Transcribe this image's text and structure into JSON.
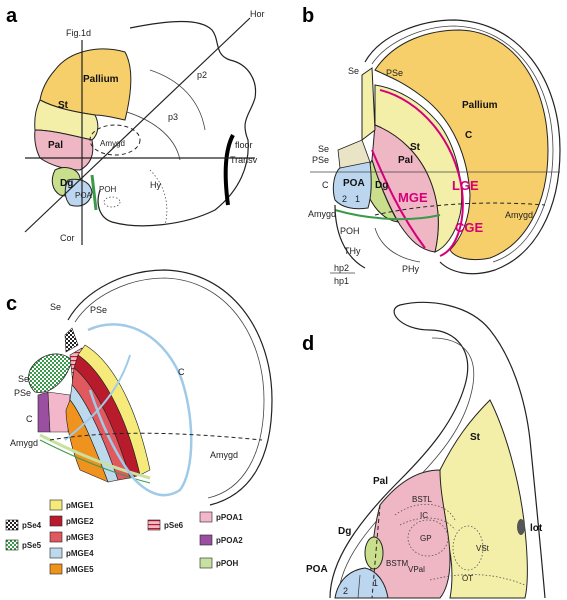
{
  "panels": {
    "a": {
      "letter": "a",
      "labels": {
        "fig1d": "Fig.1d",
        "hor": "Hor",
        "transv": "Transv",
        "cor": "Cor",
        "pallium": "Pallium",
        "st": "St",
        "pal": "Pal",
        "amygd": "Amygd",
        "dg": "Dg",
        "poa": "POA",
        "poh": "POH",
        "hy": "Hy",
        "p2": "p2",
        "p3": "p3",
        "floor": "floor"
      }
    },
    "b": {
      "letter": "b",
      "labels": {
        "se_top": "Se",
        "pse_top": "PSe",
        "se_mid": "Se",
        "pse_mid": "PSe",
        "c_left": "C",
        "pallium": "Pallium",
        "c_arc": "C",
        "st": "St",
        "pal": "Pal",
        "dg": "Dg",
        "poa": "POA",
        "n2": "2",
        "n1": "1",
        "mge": "MGE",
        "lge": "LGE",
        "cge": "CGE",
        "amygd_left": "Amygd",
        "amygd_right": "Amygd",
        "poh": "POH",
        "thy": "THy",
        "phy": "PHy",
        "hp2": "hp2",
        "hp1": "hp1"
      }
    },
    "c": {
      "letter": "c",
      "labels": {
        "se_top": "Se",
        "pse_top": "PSe",
        "se_mid": "Se",
        "pse_mid": "PSe",
        "c_left": "C",
        "c_arc": "C",
        "amygd_left": "Amygd",
        "amygd_right": "Amygd"
      }
    },
    "d": {
      "letter": "d",
      "labels": {
        "st": "St",
        "pal": "Pal",
        "dg": "Dg",
        "poa": "POA",
        "bstl": "BSTL",
        "ic": "IC",
        "gp": "GP",
        "bstm": "BSTM",
        "vpal": "VPal",
        "vst": "VSt",
        "ot": "OT",
        "lot": "lot",
        "n2": "2",
        "n1": "1"
      }
    }
  },
  "legend": {
    "items": [
      {
        "label": "pSe4",
        "color": "#ffffff",
        "pattern": "checker"
      },
      {
        "label": "pSe5",
        "color": "#3a9a4a",
        "pattern": "checker"
      },
      {
        "label": "pMGE1",
        "color": "#f5ea7a",
        "pattern": "none"
      },
      {
        "label": "pMGE2",
        "color": "#b81c2c",
        "pattern": "none"
      },
      {
        "label": "pMGE3",
        "color": "#e0595f",
        "pattern": "none"
      },
      {
        "label": "pMGE4",
        "color": "#bcd9ee",
        "pattern": "none"
      },
      {
        "label": "pMGE5",
        "color": "#f0931e",
        "pattern": "none"
      },
      {
        "label": "pSe6",
        "color": "#f4b7c6",
        "pattern": "stripes"
      },
      {
        "label": "pPOA1",
        "color": "#f3b7cb",
        "pattern": "none"
      },
      {
        "label": "pPOA2",
        "color": "#9a4fa0",
        "pattern": "none"
      },
      {
        "label": "pPOH",
        "color": "#c8e0a0",
        "pattern": "none"
      }
    ]
  },
  "colors": {
    "pallium": "#f6cf6a",
    "striatum": "#f3efa8",
    "pallidum": "#efb6c4",
    "poa_blue": "#bcd6ef",
    "dg_green": "#c9df8c",
    "magenta": "#d4007a",
    "light_blue": "#9fcbe8"
  }
}
